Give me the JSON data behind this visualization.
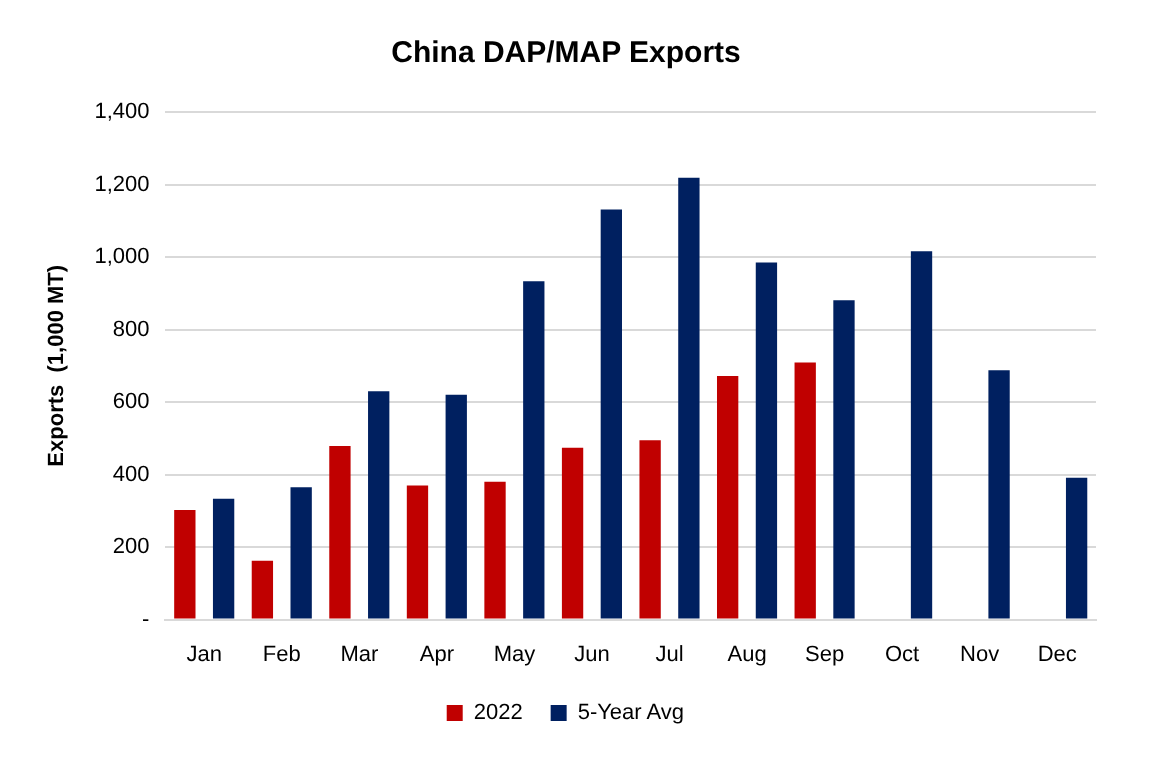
{
  "chart_data": {
    "type": "bar",
    "title": "China DAP/MAP Exports",
    "ylabel": "Exports  (1,000 MT)",
    "categories": [
      "Jan",
      "Feb",
      "Mar",
      "Apr",
      "May",
      "Jun",
      "Jul",
      "Aug",
      "Sep",
      "Oct",
      "Nov",
      "Dec"
    ],
    "series": [
      {
        "name": "2022",
        "color": "#c00000",
        "values": [
          302,
          162,
          479,
          370,
          380,
          474,
          495,
          672,
          709,
          null,
          null,
          null
        ]
      },
      {
        "name": "5-Year Avg",
        "color": "#002060",
        "values": [
          333,
          365,
          630,
          620,
          933,
          1131,
          1219,
          985,
          881,
          1016,
          688,
          391
        ]
      }
    ],
    "ylim": [
      0,
      1400
    ],
    "yticks": [
      {
        "value": 0,
        "label": "-"
      },
      {
        "value": 200,
        "label": "200"
      },
      {
        "value": 400,
        "label": "400"
      },
      {
        "value": 600,
        "label": "600"
      },
      {
        "value": 800,
        "label": "800"
      },
      {
        "value": 1000,
        "label": "1,000"
      },
      {
        "value": 1200,
        "label": "1,200"
      },
      {
        "value": 1400,
        "label": "1,400"
      }
    ],
    "grid": "y",
    "legend": "bottom"
  }
}
